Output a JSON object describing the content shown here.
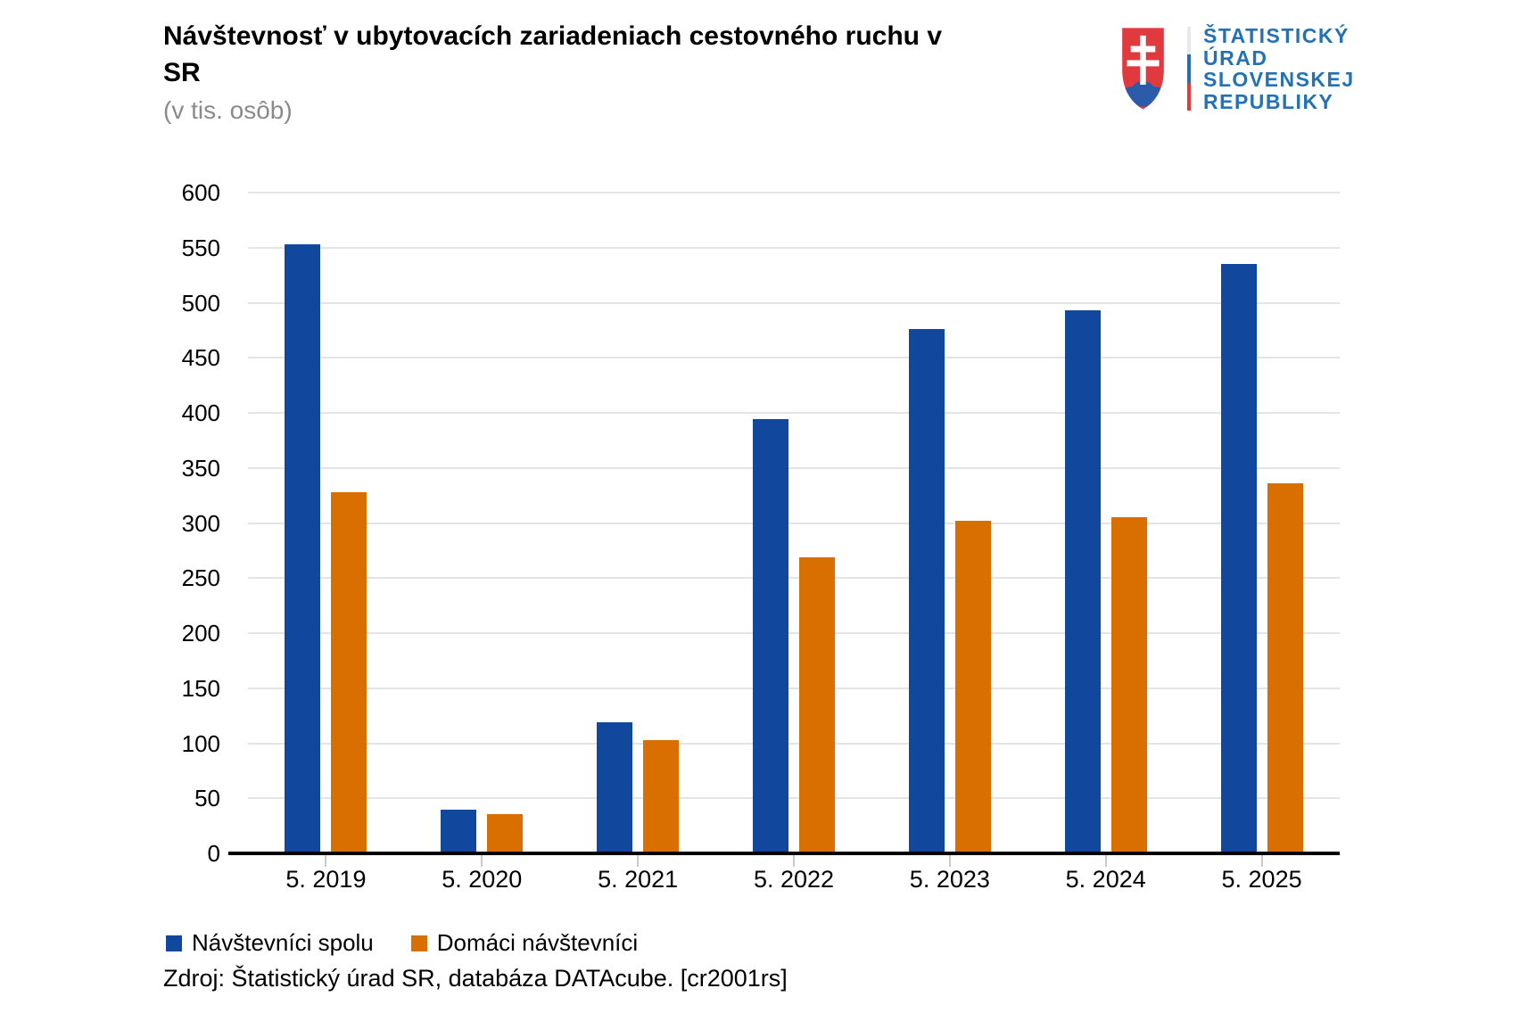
{
  "header": {
    "title": "Návštevnosť v ubytovacích zariadeniach cestovného ruchu v SR",
    "subtitle": "(v tis. osôb)",
    "logo": {
      "lines": [
        "ŠTATISTICKÝ",
        "ÚRAD",
        "SLOVENSKEJ",
        "REPUBLIKY"
      ],
      "text_color": "#2272b5",
      "flag_colors": [
        "#e8e8e8",
        "#2b6cb5",
        "#e0393e"
      ],
      "shield_red": "#e0393e",
      "shield_blue": "#2b5ca9"
    }
  },
  "chart_data": {
    "type": "bar",
    "categories": [
      "5. 2019",
      "5. 2020",
      "5. 2021",
      "5. 2022",
      "5. 2023",
      "5. 2024",
      "5. 2025"
    ],
    "series": [
      {
        "name": "Návštevníci spolu",
        "color": "#11489d",
        "values": [
          553,
          40,
          119,
          394,
          476,
          493,
          535
        ]
      },
      {
        "name": "Domáci návštevníci",
        "color": "#d96f00",
        "values": [
          328,
          36,
          103,
          269,
          302,
          305,
          336
        ]
      }
    ],
    "title": "Návštevnosť v ubytovacích zariadeniach cestovného ruchu v SR",
    "subtitle": "(v tis. osôb)",
    "xlabel": "",
    "ylabel": "",
    "ylim": [
      0,
      600
    ],
    "ytick_step": 50,
    "grid": true,
    "gridline_color": "#e4e4e4",
    "axis_color": "#000000",
    "legend_position": "bottom"
  },
  "source": "Zdroj: Štatistický úrad SR, databáza DATAcube. [cr2001rs]"
}
